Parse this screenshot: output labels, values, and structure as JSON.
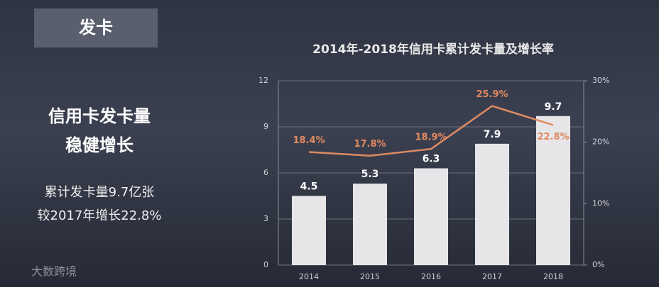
{
  "slide": {
    "tag": "发卡",
    "headline": [
      "信用卡发卡量",
      "稳健增长"
    ],
    "notes": [
      "累计发卡量9.7亿张",
      "较2017年增长22.8%"
    ],
    "watermark": "大数跨境"
  },
  "chart_data": {
    "type": "bar",
    "title": "2014年-2018年信用卡累计发卡量及增长率",
    "categories": [
      "2014",
      "2015",
      "2016",
      "2017",
      "2018"
    ],
    "series": [
      {
        "type": "bar",
        "color": "#e6e6e8",
        "values": [
          4.5,
          5.3,
          6.3,
          7.9,
          9.7
        ]
      },
      {
        "type": "line",
        "axis": "y2",
        "color": "#e08a62",
        "values": [
          18.4,
          17.8,
          18.9,
          25.9,
          22.8
        ],
        "value_labels": [
          "18.4%",
          "17.8%",
          "18.9%",
          "25.9%",
          "22.8%"
        ]
      }
    ],
    "ylim": [
      0,
      12
    ],
    "yticks": [
      0,
      3,
      6,
      9,
      12
    ],
    "y2lim": [
      0,
      30
    ],
    "y2ticks": [
      {
        "value": 0,
        "label": "0%"
      },
      {
        "value": 10,
        "label": "10%"
      },
      {
        "value": 20,
        "label": "20%"
      },
      {
        "value": 30,
        "label": "30%"
      }
    ],
    "grid": true
  }
}
